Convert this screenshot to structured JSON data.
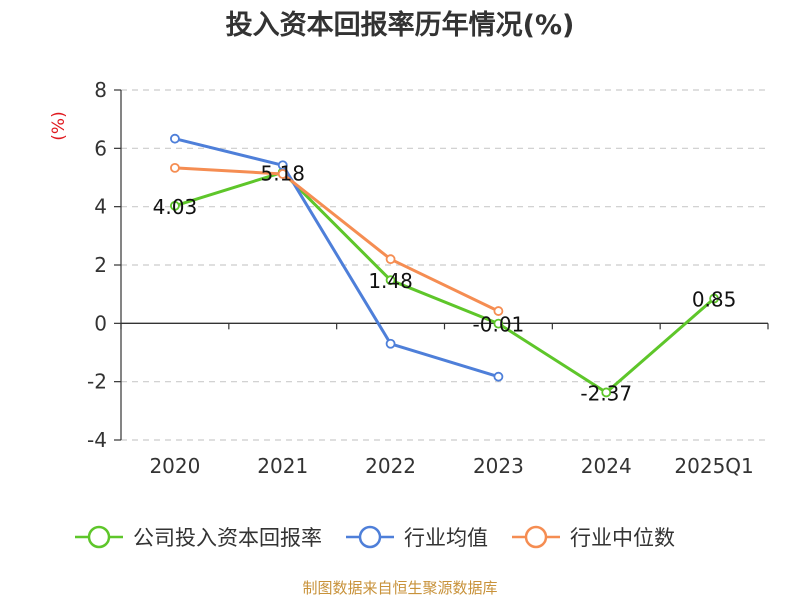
{
  "chart_data": {
    "type": "line",
    "title": "投入资本回报率历年情况(%)",
    "ylabel": "(%)",
    "xlabel": "",
    "categories": [
      "2020",
      "2021",
      "2022",
      "2023",
      "2024",
      "2025Q1"
    ],
    "ylim": [
      -4,
      8
    ],
    "yticks": [
      -4,
      -2,
      0,
      2,
      4,
      6,
      8
    ],
    "grid": true,
    "legend_position": "bottom",
    "series": [
      {
        "name": "公司投入资本回报率",
        "color": "#5ec62a",
        "values": [
          4.03,
          5.18,
          1.48,
          -0.01,
          -2.37,
          0.85
        ],
        "labels": [
          "4.03",
          "5.18",
          "1.48",
          "-0.01",
          "-2.37",
          "0.85"
        ]
      },
      {
        "name": "行业均值",
        "color": "#4e7fd9",
        "values": [
          6.33,
          5.42,
          -0.7,
          -1.83,
          null,
          null
        ]
      },
      {
        "name": "行业中位数",
        "color": "#f58d52",
        "values": [
          5.33,
          5.12,
          2.2,
          0.42,
          null,
          null
        ]
      }
    ],
    "source": "制图数据来自恒生聚源数据库"
  }
}
